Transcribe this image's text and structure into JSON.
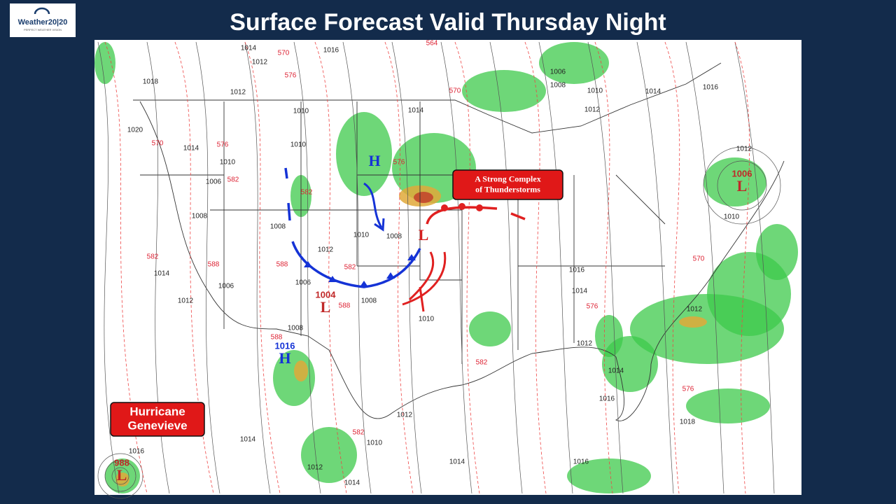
{
  "logo": {
    "name": "Weather20|20",
    "tagline": "PERFECT WEATHER VISION"
  },
  "title": "Surface Forecast Valid Thursday Night",
  "callouts": [
    {
      "lines": [
        "A Strong Complex",
        "of Thunderstorms"
      ]
    },
    {
      "lines": [
        "Hurricane",
        "Genevieve"
      ]
    }
  ],
  "pressure_systems": [
    {
      "letter": "H"
    },
    {
      "letter": "L"
    },
    {
      "letter": "L",
      "pressure": "1004"
    },
    {
      "letter": "H",
      "pressure": "1016"
    },
    {
      "letter": "L",
      "pressure": "1006"
    },
    {
      "letter": "L",
      "pressure": "988"
    }
  ],
  "isobar_labels": [
    "1014",
    "1016",
    "1012",
    "1018",
    "1012",
    "1010",
    "1014",
    "1006",
    "1008",
    "1010",
    "1012",
    "1014",
    "1016",
    "1020",
    "1014",
    "1010",
    "1010",
    "1006",
    "1008",
    "1008",
    "1012",
    "1010",
    "1008",
    "1006",
    "1006",
    "1014",
    "1012",
    "1008",
    "1010",
    "1016",
    "1014",
    "1012",
    "1008",
    "1012",
    "1014",
    "1016",
    "1018",
    "1010",
    "1012",
    "1016",
    "1014",
    "1012",
    "1010",
    "1014",
    "1016",
    "1012",
    "1014"
  ],
  "thickness_labels": [
    "570",
    "576",
    "564",
    "570",
    "570",
    "576",
    "582",
    "582",
    "576",
    "588",
    "588",
    "582",
    "582",
    "588",
    "576",
    "570",
    "576",
    "582",
    "582",
    "588"
  ]
}
